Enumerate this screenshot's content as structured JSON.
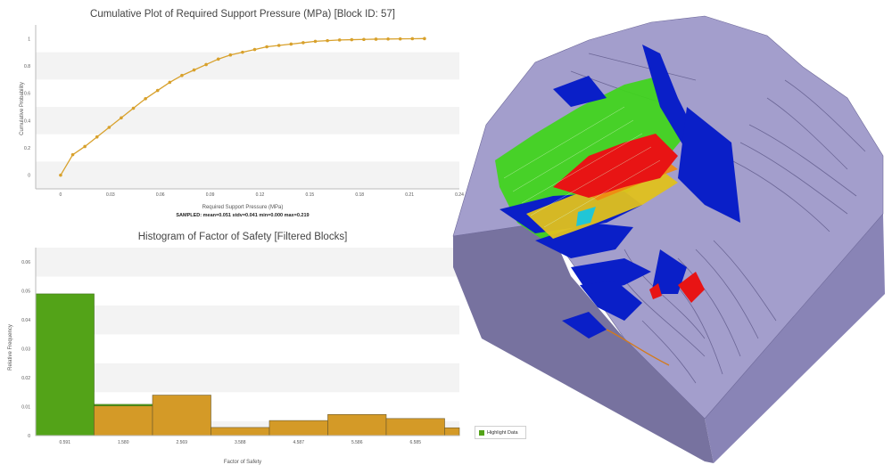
{
  "colors": {
    "cdf_line": "#d8a12c",
    "hist_bar": "#d49a27",
    "highlight": "#53a318",
    "model_face": "#9c97c8",
    "model_side": "#8681b5",
    "model_front": "#77729f"
  },
  "legend": {
    "label": "Highlight Data"
  },
  "chart_data": [
    {
      "type": "line",
      "title": "Cumulative Plot of Required Support Pressure (MPa) [Block ID: 57]",
      "xlabel": "Required Support Pressure (MPa)",
      "ylabel": "Cumulative Probability",
      "xlim": [
        -0.015,
        0.24
      ],
      "ylim": [
        -0.1,
        1.1
      ],
      "x_ticks": [
        "0",
        "0.03",
        "0.06",
        "0.09",
        "0.12",
        "0.15",
        "0.18",
        "0.21",
        "0.24"
      ],
      "y_ticks": [
        "0",
        "0.2",
        "0.4",
        "0.6",
        "0.8",
        "1"
      ],
      "stats": "SAMPLED: mean=0.051 stdv=0.041 min=0.000 max=0.219",
      "x": [
        0,
        0.0073,
        0.0146,
        0.0219,
        0.0292,
        0.0365,
        0.0438,
        0.0511,
        0.0584,
        0.0657,
        0.073,
        0.0803,
        0.0876,
        0.0949,
        0.1022,
        0.1095,
        0.1168,
        0.1241,
        0.1314,
        0.1387,
        0.146,
        0.1533,
        0.1606,
        0.1679,
        0.1752,
        0.1825,
        0.1898,
        0.1971,
        0.2044,
        0.2117,
        0.219
      ],
      "y": [
        0.0,
        0.15,
        0.21,
        0.28,
        0.35,
        0.42,
        0.49,
        0.56,
        0.62,
        0.68,
        0.73,
        0.77,
        0.81,
        0.85,
        0.88,
        0.9,
        0.92,
        0.94,
        0.95,
        0.96,
        0.97,
        0.98,
        0.985,
        0.99,
        0.992,
        0.994,
        0.996,
        0.997,
        0.998,
        0.999,
        1.0
      ]
    },
    {
      "type": "bar",
      "title": "Histogram of Factor of Safety [Filtered Blocks]",
      "xlabel": "Factor of Safety",
      "ylabel": "Relative Frequency",
      "ylim": [
        0,
        0.065
      ],
      "y_ticks": [
        "0",
        "0.01",
        "0.02",
        "0.03",
        "0.04",
        "0.05",
        "0.06"
      ],
      "categories": [
        "0.591",
        "1.580",
        "2.569",
        "3.588",
        "4.587",
        "5.586",
        "6.585",
        ""
      ],
      "series": [
        {
          "name": "Highlight Data",
          "values": [
            0.049,
            0.0005,
            0,
            0,
            0,
            0,
            0,
            0
          ]
        },
        {
          "values": [
            0,
            0.0103,
            0.014,
            0.0028,
            0.0052,
            0.0073,
            0.0059,
            0.0027
          ]
        }
      ]
    }
  ]
}
